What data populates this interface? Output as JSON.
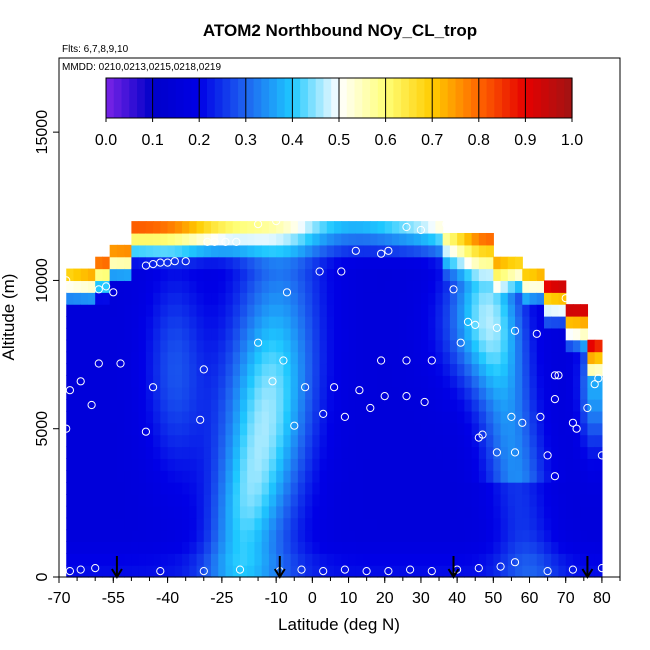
{
  "chart_data": {
    "type": "heatmap",
    "title": "ATOM2 Northbound NOy_CL_trop",
    "flights_note": "Flts: 6,7,8,9,10",
    "dates_note": "MMDD: 0210,0213,0215,0218,0219",
    "xlabel": "Latitude (deg N)",
    "ylabel": "Altitude (m)",
    "xlim": [
      -70,
      85
    ],
    "ylim": [
      0,
      17500
    ],
    "x_ticks": [
      "-70",
      "-55",
      "-40",
      "-25",
      "-10",
      "0",
      "10",
      "20",
      "30",
      "40",
      "50",
      "60",
      "70",
      "80"
    ],
    "x_tick_values": [
      -70,
      -55,
      -40,
      -25,
      -10,
      0,
      10,
      20,
      30,
      40,
      50,
      60,
      70,
      80
    ],
    "y_ticks": [
      "0",
      "5000",
      "10000",
      "15000"
    ],
    "y_tick_values": [
      0,
      5000,
      10000,
      15000
    ],
    "colorbar": {
      "ticks": [
        "0.0",
        "0.1",
        "0.2",
        "0.3",
        "0.4",
        "0.5",
        "0.6",
        "0.7",
        "0.8",
        "0.9",
        "1.0"
      ],
      "range": [
        0,
        1
      ],
      "colors": [
        "#7b24e6",
        "#0000c8",
        "#0000e6",
        "#1e64f0",
        "#1ec8ff",
        "#ffffff",
        "#ffff78",
        "#ffcc00",
        "#ff6600",
        "#e60000",
        "#a01414"
      ]
    },
    "arrows_latitude": [
      -54,
      -9,
      39,
      76
    ],
    "sample_points": [
      [
        -67,
        200
      ],
      [
        -64,
        250
      ],
      [
        -60,
        300
      ],
      [
        -42,
        200
      ],
      [
        -30,
        200
      ],
      [
        -20,
        250
      ],
      [
        -9,
        200
      ],
      [
        -3,
        250
      ],
      [
        3,
        200
      ],
      [
        9,
        250
      ],
      [
        15,
        200
      ],
      [
        21,
        200
      ],
      [
        27,
        250
      ],
      [
        33,
        200
      ],
      [
        40,
        250
      ],
      [
        46,
        300
      ],
      [
        52,
        350
      ],
      [
        56,
        500
      ],
      [
        65,
        200
      ],
      [
        72,
        250
      ],
      [
        80,
        300
      ],
      [
        -68,
        10000
      ],
      [
        -59,
        9700
      ],
      [
        -57,
        9800
      ],
      [
        -55,
        9600
      ],
      [
        -46,
        10500
      ],
      [
        -44,
        10550
      ],
      [
        -42,
        10600
      ],
      [
        -40,
        10600
      ],
      [
        -38,
        10650
      ],
      [
        -35,
        10650
      ],
      [
        -29,
        11300
      ],
      [
        -27,
        11300
      ],
      [
        -24,
        11300
      ],
      [
        -21,
        11300
      ],
      [
        -15,
        11900
      ],
      [
        -10,
        12000
      ],
      [
        12,
        11000
      ],
      [
        19,
        10900
      ],
      [
        21,
        11000
      ],
      [
        26,
        11800
      ],
      [
        30,
        11700
      ],
      [
        37,
        11900
      ],
      [
        2,
        10300
      ],
      [
        -7,
        9600
      ],
      [
        8,
        10300
      ],
      [
        -67,
        6300
      ],
      [
        -64,
        6600
      ],
      [
        -61,
        5800
      ],
      [
        -59,
        7200
      ],
      [
        -53,
        7200
      ],
      [
        -44,
        6400
      ],
      [
        -46,
        4900
      ],
      [
        -31,
        5300
      ],
      [
        -30,
        7000
      ],
      [
        -15,
        7900
      ],
      [
        -11,
        6600
      ],
      [
        -8,
        7300
      ],
      [
        -5,
        5100
      ],
      [
        -2,
        6400
      ],
      [
        3,
        5500
      ],
      [
        6,
        6400
      ],
      [
        9,
        5400
      ],
      [
        13,
        6300
      ],
      [
        16,
        5700
      ],
      [
        19,
        7300
      ],
      [
        20,
        6100
      ],
      [
        26,
        6100
      ],
      [
        26,
        7300
      ],
      [
        31,
        5900
      ],
      [
        33,
        7300
      ],
      [
        39,
        9700
      ],
      [
        41,
        7900
      ],
      [
        43,
        8600
      ],
      [
        45,
        8500
      ],
      [
        46,
        4700
      ],
      [
        47,
        4800
      ],
      [
        51,
        8400
      ],
      [
        51,
        4200
      ],
      [
        56,
        8300
      ],
      [
        56,
        4200
      ],
      [
        55,
        5400
      ],
      [
        58,
        5200
      ],
      [
        62,
        8200
      ],
      [
        63,
        5400
      ],
      [
        65,
        4100
      ],
      [
        67,
        6800
      ],
      [
        68,
        6800
      ],
      [
        67,
        6000
      ],
      [
        67,
        3400
      ],
      [
        70,
        9400
      ],
      [
        72,
        5200
      ],
      [
        73,
        5000
      ],
      [
        76,
        5700
      ],
      [
        78,
        6500
      ],
      [
        79,
        6700
      ],
      [
        80,
        4100
      ],
      [
        -68,
        5000
      ]
    ]
  }
}
